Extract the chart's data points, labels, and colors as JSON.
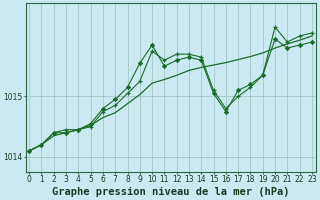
{
  "title": "Graphe pression niveau de la mer (hPa)",
  "background_color": "#cbe9f0",
  "plot_bg_color": "#cbe9f0",
  "grid_color": "#9bbfb8",
  "line_color": "#1a6b2a",
  "hours": [
    0,
    1,
    2,
    3,
    4,
    5,
    6,
    7,
    8,
    9,
    10,
    11,
    12,
    13,
    14,
    15,
    16,
    17,
    18,
    19,
    20,
    21,
    22,
    23
  ],
  "series_diamond": [
    1014.1,
    1014.2,
    1014.4,
    1014.4,
    1014.45,
    1014.55,
    1014.8,
    1014.95,
    1015.15,
    1015.55,
    1015.85,
    1015.5,
    1015.6,
    1015.65,
    1015.6,
    1015.05,
    1014.75,
    1015.1,
    1015.2,
    1015.35,
    1015.95,
    1015.8,
    1015.85,
    1015.9
  ],
  "series_plus": [
    1014.1,
    1014.2,
    1014.4,
    1014.45,
    1014.45,
    1014.5,
    1014.75,
    1014.85,
    1015.05,
    1015.25,
    1015.75,
    1015.6,
    1015.7,
    1015.7,
    1015.65,
    1015.1,
    1014.8,
    1015.0,
    1015.15,
    1015.35,
    1016.15,
    1015.9,
    1016.0,
    1016.05
  ],
  "series_line": [
    1014.1,
    1014.2,
    1014.35,
    1014.4,
    1014.45,
    1014.52,
    1014.65,
    1014.73,
    1014.88,
    1015.03,
    1015.22,
    1015.28,
    1015.35,
    1015.43,
    1015.48,
    1015.52,
    1015.56,
    1015.61,
    1015.66,
    1015.72,
    1015.8,
    1015.87,
    1015.93,
    1016.0
  ],
  "ylim_min": 1013.75,
  "ylim_max": 1016.55,
  "yticks": [
    1014,
    1015
  ],
  "xlim_min": -0.3,
  "xlim_max": 23.3,
  "title_fontsize": 7.5,
  "tick_fontsize": 5.5
}
